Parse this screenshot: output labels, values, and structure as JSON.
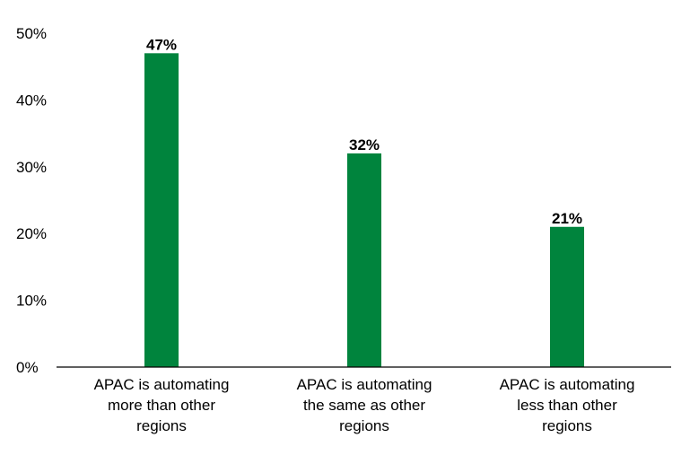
{
  "chart_data": {
    "type": "bar",
    "categories": [
      [
        "APAC is automating",
        "more than other",
        "regions"
      ],
      [
        "APAC is automating",
        "the same as other",
        "regions"
      ],
      [
        "APAC is automating",
        "less than other",
        "regions"
      ]
    ],
    "values": [
      47,
      32,
      21
    ],
    "data_labels": [
      "47%",
      "32%",
      "21%"
    ],
    "ylim": [
      0,
      50
    ],
    "y_ticks": [
      0,
      10,
      20,
      30,
      40,
      50
    ],
    "y_tick_labels": [
      "0%",
      "10%",
      "20%",
      "30%",
      "40%",
      "50%"
    ],
    "grid": false,
    "legend": "none",
    "bar_color": "#00843D",
    "title": "",
    "xlabel": "",
    "ylabel": ""
  }
}
